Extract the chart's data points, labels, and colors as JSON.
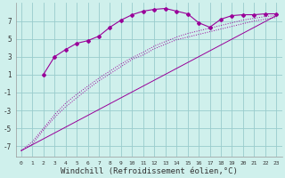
{
  "bg_color": "#cff0ec",
  "grid_color": "#99cccc",
  "line_color": "#990099",
  "xlabel": "Windchill (Refroidissement éolien,°C)",
  "xlabel_fontsize": 6.5,
  "ylabel_vals": [
    -7,
    -5,
    -3,
    -1,
    1,
    3,
    5,
    7
  ],
  "xlim": [
    -0.5,
    23.5
  ],
  "ylim": [
    -8.2,
    9.0
  ],
  "line1_x": [
    2,
    3,
    4,
    5,
    6,
    7,
    8,
    9,
    10,
    11,
    12,
    13,
    14,
    15,
    16,
    17,
    18,
    19,
    20,
    21,
    22,
    23
  ],
  "line1_y": [
    1.0,
    3.0,
    3.8,
    4.5,
    4.8,
    5.3,
    6.3,
    7.1,
    7.7,
    8.1,
    8.3,
    8.4,
    8.1,
    7.8,
    6.8,
    6.3,
    7.2,
    7.6,
    7.7,
    7.7,
    7.8,
    7.8
  ],
  "line2_x": [
    0,
    1,
    2,
    3,
    4,
    5,
    6,
    7,
    8,
    9,
    10,
    11,
    12,
    13,
    14,
    15,
    16,
    17,
    18,
    19,
    20,
    21,
    22,
    23
  ],
  "line2_y": [
    -7.5,
    -6.8,
    -5.2,
    -3.8,
    -2.6,
    -1.6,
    -0.6,
    0.3,
    1.1,
    1.9,
    2.7,
    3.2,
    3.9,
    4.4,
    4.9,
    5.2,
    5.5,
    5.8,
    6.1,
    6.4,
    6.7,
    7.0,
    7.2,
    7.4
  ],
  "line3_x": [
    0,
    1,
    2,
    3,
    4,
    5,
    6,
    7,
    8,
    9,
    10,
    11,
    12,
    13,
    14,
    15,
    16,
    17,
    18,
    19,
    20,
    21,
    22,
    23
  ],
  "line3_y": [
    -7.5,
    -6.5,
    -5.0,
    -3.5,
    -2.2,
    -1.2,
    -0.3,
    0.6,
    1.4,
    2.2,
    2.9,
    3.5,
    4.2,
    4.7,
    5.2,
    5.6,
    5.9,
    6.2,
    6.5,
    6.8,
    7.1,
    7.3,
    7.5,
    7.6
  ],
  "line4_x": [
    0,
    23
  ],
  "line4_y": [
    -7.5,
    7.6
  ]
}
